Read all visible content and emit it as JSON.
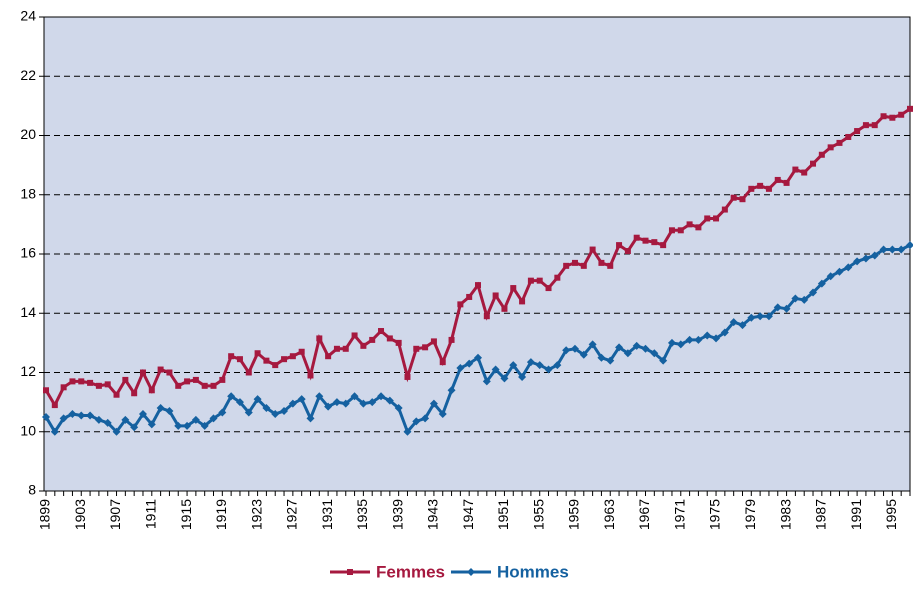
{
  "chart_data": {
    "type": "line",
    "categories": [
      "1899",
      null,
      null,
      null,
      "1903",
      null,
      null,
      null,
      "1907",
      null,
      null,
      null,
      "1911",
      null,
      null,
      null,
      "1915",
      null,
      null,
      null,
      "1919",
      null,
      null,
      null,
      "1923",
      null,
      null,
      null,
      "1927",
      null,
      null,
      null,
      "1931",
      null,
      null,
      null,
      "1935",
      null,
      null,
      null,
      "1939",
      null,
      null,
      null,
      "1943",
      null,
      null,
      null,
      "1947",
      null,
      null,
      null,
      "1951",
      null,
      null,
      null,
      "1955",
      null,
      null,
      null,
      "1959",
      null,
      null,
      null,
      "1963",
      null,
      null,
      null,
      "1967",
      null,
      null,
      null,
      "1971",
      null,
      null,
      null,
      "1975",
      null,
      null,
      null,
      "1979",
      null,
      null,
      null,
      "1983",
      null,
      null,
      null,
      "1987",
      null,
      null,
      null,
      "1991",
      null,
      null,
      null,
      "1995",
      null,
      null
    ],
    "series": [
      {
        "name": "Femmes",
        "color": "#a6193f",
        "marker": "square",
        "values": [
          11.4,
          10.9,
          11.5,
          11.7,
          11.7,
          11.65,
          11.55,
          11.6,
          11.25,
          11.75,
          11.3,
          12.0,
          11.4,
          12.1,
          12.0,
          11.55,
          11.7,
          11.75,
          11.55,
          11.55,
          11.75,
          12.55,
          12.45,
          12.0,
          12.65,
          12.4,
          12.25,
          12.45,
          12.55,
          12.7,
          11.9,
          13.15,
          12.55,
          12.8,
          12.8,
          13.25,
          12.9,
          13.1,
          13.4,
          13.15,
          13.0,
          11.85,
          12.8,
          12.85,
          13.05,
          12.35,
          13.1,
          14.3,
          14.55,
          14.95,
          13.9,
          14.6,
          14.15,
          14.85,
          14.4,
          15.1,
          15.1,
          14.85,
          15.2,
          15.6,
          15.7,
          15.6,
          16.15,
          15.7,
          15.6,
          16.3,
          16.1,
          16.55,
          16.45,
          16.4,
          16.3,
          16.8,
          16.8,
          17.0,
          16.9,
          17.2,
          17.2,
          17.5,
          17.9,
          17.85,
          18.2,
          18.3,
          18.2,
          18.5,
          18.4,
          18.85,
          18.75,
          19.05,
          19.35,
          19.6,
          19.75,
          19.95,
          20.15,
          20.35,
          20.35,
          20.65,
          20.6,
          20.7,
          20.9
        ]
      },
      {
        "name": "Hommes",
        "color": "#1561a0",
        "marker": "diamond",
        "values": [
          10.5,
          10.0,
          10.45,
          10.6,
          10.55,
          10.55,
          10.4,
          10.3,
          10.0,
          10.4,
          10.15,
          10.6,
          10.25,
          10.8,
          10.7,
          10.2,
          10.2,
          10.4,
          10.2,
          10.45,
          10.65,
          11.2,
          11.0,
          10.65,
          11.1,
          10.8,
          10.6,
          10.7,
          10.95,
          11.1,
          10.45,
          11.2,
          10.85,
          11.0,
          10.95,
          11.2,
          10.95,
          11.0,
          11.2,
          11.05,
          10.8,
          10.0,
          10.35,
          10.45,
          10.95,
          10.6,
          11.4,
          12.15,
          12.3,
          12.5,
          11.7,
          12.1,
          11.8,
          12.25,
          11.85,
          12.35,
          12.25,
          12.1,
          12.25,
          12.75,
          12.8,
          12.6,
          12.95,
          12.5,
          12.4,
          12.85,
          12.65,
          12.9,
          12.8,
          12.65,
          12.4,
          13.0,
          12.95,
          13.1,
          13.1,
          13.25,
          13.15,
          13.35,
          13.7,
          13.6,
          13.85,
          13.9,
          13.9,
          14.2,
          14.15,
          14.5,
          14.45,
          14.7,
          15.0,
          15.25,
          15.4,
          15.55,
          15.75,
          15.85,
          15.95,
          16.15,
          16.15,
          16.15,
          16.3
        ]
      }
    ],
    "ylim": [
      8,
      24
    ],
    "yticks": [
      8,
      10,
      12,
      14,
      16,
      18,
      20,
      22,
      24
    ],
    "grid": true,
    "plot_background": "#d0d8ea",
    "legend": "bottom"
  }
}
